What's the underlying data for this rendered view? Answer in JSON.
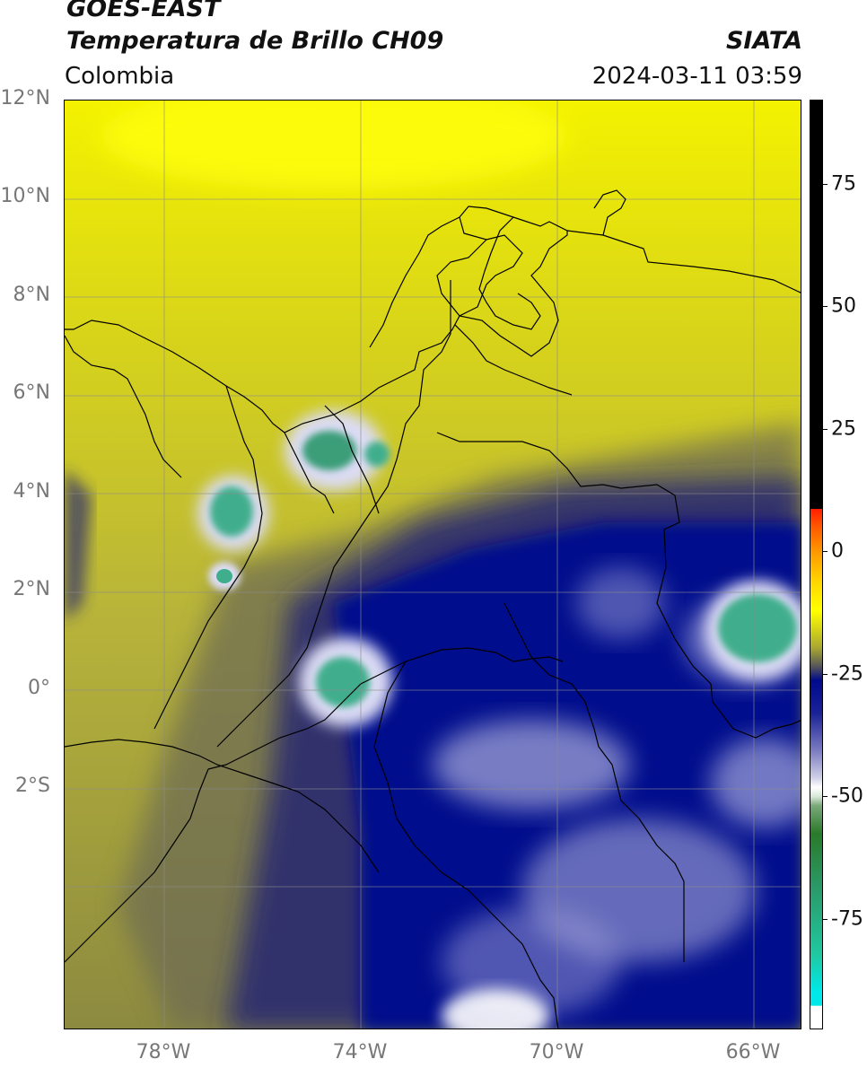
{
  "header": {
    "satellite": "GOES-EAST",
    "product": "Temperatura de Brillo CH09",
    "region": "Colombia",
    "organization": "SIATA",
    "datetime": "2024-03-11 03:59"
  },
  "map": {
    "lat_labels": [
      "12°N",
      "10°N",
      "8°N",
      "6°N",
      "4°N",
      "2°N",
      "0°",
      "2°S"
    ],
    "lon_labels": [
      "78°W",
      "74°W",
      "70°W",
      "66°W"
    ],
    "lat_range": [
      -5,
      14
    ],
    "lon_range": [
      -80,
      -65
    ]
  },
  "colorbar": {
    "labels": [
      "75",
      "50",
      "25",
      "0",
      "-25",
      "-50",
      "-75"
    ],
    "range": [
      -95,
      90
    ],
    "colors": {
      "black": "#000000",
      "red": "#ff1e00",
      "orange": "#ffa000",
      "yellow": "#ffff00",
      "olive": "#a8a632",
      "gray": "#55555a",
      "navy": "#000a8c",
      "white": "#ffffff",
      "green": "#2a7a2a",
      "teal": "#20c8a0",
      "cyan": "#00e8e8"
    }
  }
}
